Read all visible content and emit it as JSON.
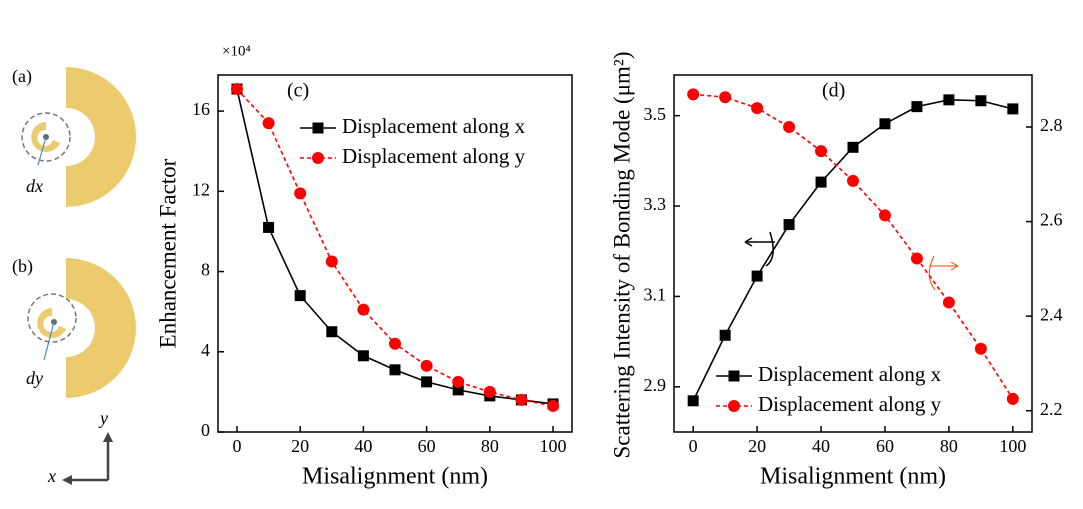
{
  "diagram": {
    "panel_a": "(a)",
    "panel_b": "(b)",
    "dx": "dx",
    "dy": "dy",
    "axis_x": "x",
    "axis_y": "y"
  },
  "chart_data": [
    {
      "type": "line",
      "panel": "(c)",
      "multiplier": "×10⁴",
      "xlabel": "Misalignment (nm)",
      "ylabel": "Enhancement Factor",
      "x": [
        0,
        10,
        20,
        30,
        40,
        50,
        60,
        70,
        80,
        90,
        100
      ],
      "xlim": [
        -6,
        106
      ],
      "xticks": [
        0,
        20,
        40,
        60,
        80,
        100
      ],
      "ylim": [
        0,
        17.8
      ],
      "yticks": [
        0,
        4,
        8,
        12,
        16
      ],
      "legend": "upper right",
      "series": [
        {
          "name": "Displacement along x",
          "color": "#000000",
          "marker": "square",
          "linestyle": "solid",
          "values": [
            17.1,
            10.2,
            6.8,
            5.0,
            3.8,
            3.1,
            2.5,
            2.1,
            1.8,
            1.6,
            1.4
          ]
        },
        {
          "name": "Displacement along y",
          "color": "#ff0000",
          "marker": "circle",
          "linestyle": "dashed",
          "values": [
            17.1,
            15.4,
            11.9,
            8.5,
            6.1,
            4.4,
            3.3,
            2.5,
            2.0,
            1.6,
            1.3
          ]
        }
      ]
    },
    {
      "type": "line",
      "panel": "(d)",
      "xlabel": "Misalignment (nm)",
      "ylabel": "Scattering Intensity of Bonding Mode (μm²)",
      "x": [
        0,
        10,
        20,
        30,
        40,
        50,
        60,
        70,
        80,
        90,
        100
      ],
      "xlim": [
        -6,
        106
      ],
      "xticks": [
        0,
        20,
        40,
        60,
        80,
        100
      ],
      "ylim": [
        2.8,
        3.59
      ],
      "yticks": [
        2.9,
        3.1,
        3.3,
        3.5
      ],
      "y2lim": [
        2.155,
        2.91
      ],
      "y2ticks": [
        2.2,
        2.4,
        2.6,
        2.8
      ],
      "legend": "lower right",
      "series": [
        {
          "name": "Displacement along x",
          "color": "#000000",
          "marker": "square",
          "linestyle": "solid",
          "values": [
            2.869,
            3.014,
            3.145,
            3.259,
            3.353,
            3.43,
            3.482,
            3.52,
            3.535,
            3.533,
            3.515
          ]
        },
        {
          "name": "Displacement along y",
          "color": "#ff0000",
          "marker": "circle",
          "linestyle": "dashed",
          "axis": "y2",
          "values": [
            2.869,
            2.863,
            2.84,
            2.8,
            2.749,
            2.686,
            2.613,
            2.522,
            2.429,
            2.331,
            2.225
          ]
        }
      ]
    }
  ]
}
